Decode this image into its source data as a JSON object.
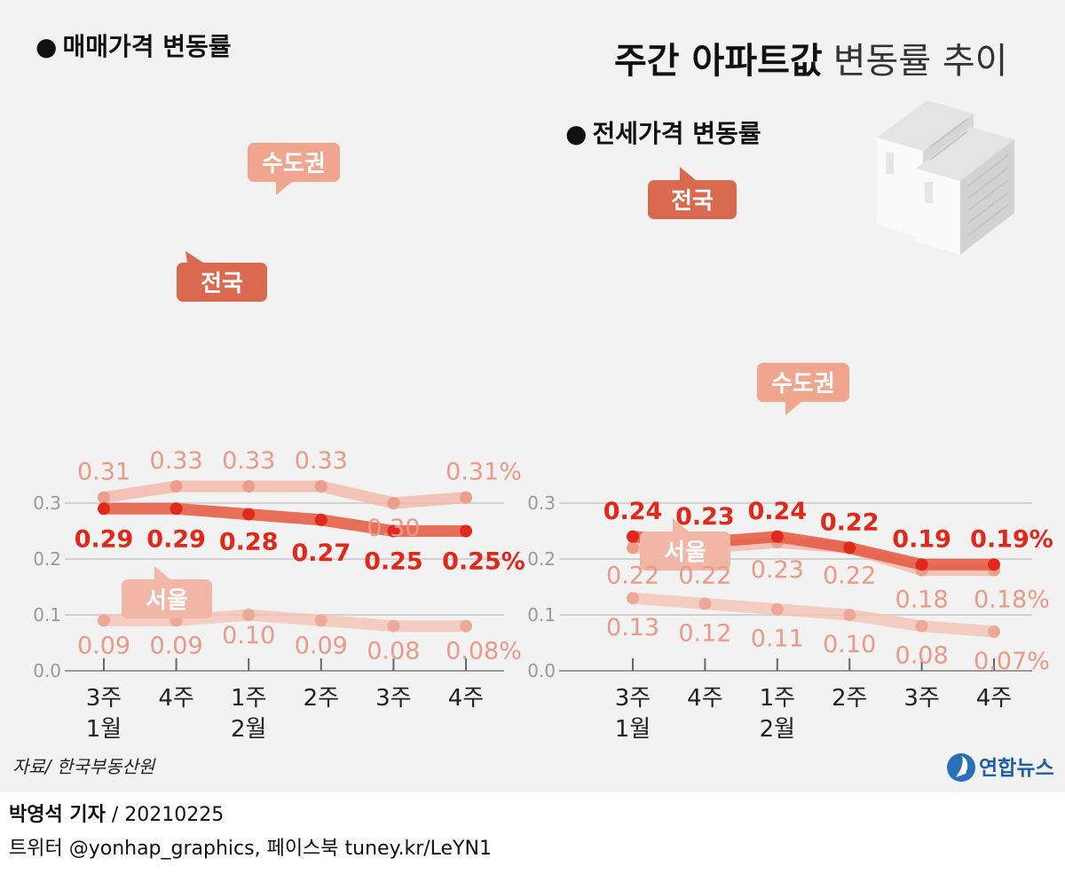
{
  "title_bold": "주간 아파트값",
  "title_light": "변동률 추이",
  "source": "자료/ 한국부동산원",
  "reporter": {
    "name": "박영석 기자",
    "sep": "/",
    "date": "20210225"
  },
  "sns": "트위터 @yonhap_graphics, 페이스북 tuney.kr/LeYN1",
  "logo": {
    "text": "연합뉴스",
    "icon": "yonhap-logo-icon"
  },
  "colors": {
    "national": "#e5583e",
    "capital": "#f1b3a1",
    "seoul": "#f3c3b4",
    "grid": "#c8c8c8",
    "label_national": "#e0281b",
    "label_capital": "#ea9a86"
  },
  "chart_data": [
    {
      "type": "line",
      "title": "매매가격 변동률",
      "x": [
        "3주",
        "4주",
        "1주",
        "2주",
        "3주",
        "4주"
      ],
      "x_month_labels": [
        {
          "index": 0,
          "label": "1월"
        },
        {
          "index": 2,
          "label": "2월"
        }
      ],
      "y_ticks": [
        "0.0",
        "0.1",
        "0.2",
        "0.3"
      ],
      "ylim": [
        0,
        0.3
      ],
      "grid": true,
      "series": [
        {
          "name": "수도권",
          "values": [
            0.31,
            0.33,
            0.33,
            0.33,
            0.3,
            0.31
          ],
          "labels": [
            "0.31",
            "0.33",
            "0.33",
            "0.33",
            "0.30",
            "0.31%"
          ]
        },
        {
          "name": "전국",
          "values": [
            0.29,
            0.29,
            0.28,
            0.27,
            0.25,
            0.25
          ],
          "labels": [
            "0.29",
            "0.29",
            "0.28",
            "0.27",
            "0.25",
            "0.25%"
          ]
        },
        {
          "name": "서울",
          "values": [
            0.09,
            0.09,
            0.1,
            0.09,
            0.08,
            0.08
          ],
          "labels": [
            "0.09",
            "0.09",
            "0.10",
            "0.09",
            "0.08",
            "0.08%"
          ]
        }
      ]
    },
    {
      "type": "line",
      "title": "전세가격 변동률",
      "x": [
        "3주",
        "4주",
        "1주",
        "2주",
        "3주",
        "4주"
      ],
      "x_month_labels": [
        {
          "index": 0,
          "label": "1월"
        },
        {
          "index": 2,
          "label": "2월"
        }
      ],
      "y_ticks": [
        "0.0",
        "0.1",
        "0.2",
        "0.3"
      ],
      "ylim": [
        0,
        0.3
      ],
      "grid": true,
      "series": [
        {
          "name": "수도권",
          "values": [
            0.22,
            0.22,
            0.23,
            0.22,
            0.18,
            0.18
          ],
          "labels": [
            "0.22",
            "0.22",
            "0.23",
            "0.22",
            "0.18",
            "0.18%"
          ]
        },
        {
          "name": "전국",
          "values": [
            0.24,
            0.23,
            0.24,
            0.22,
            0.19,
            0.19
          ],
          "labels": [
            "0.24",
            "0.23",
            "0.24",
            "0.22",
            "0.19",
            "0.19%"
          ]
        },
        {
          "name": "서울",
          "values": [
            0.13,
            0.12,
            0.11,
            0.1,
            0.08,
            0.07
          ],
          "labels": [
            "0.13",
            "0.12",
            "0.11",
            "0.10",
            "0.08",
            "0.07%"
          ]
        }
      ]
    }
  ]
}
